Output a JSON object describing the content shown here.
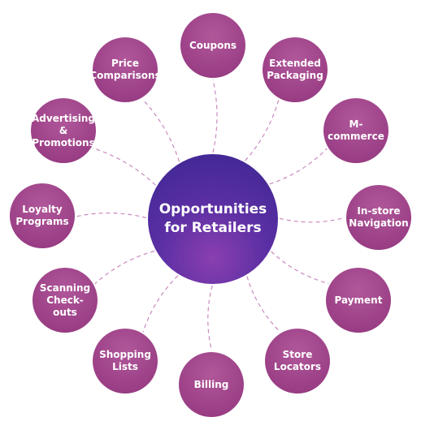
{
  "hub": {
    "label": "Opportunities\nfor Retailers"
  },
  "colors": {
    "leaf": "#9b3f86",
    "hub": "#3b2691",
    "connector": "#c98abf"
  },
  "nodes": [
    {
      "id": "coupons",
      "label": "Coupons"
    },
    {
      "id": "extended-packaging",
      "label": "Extended\nPackaging"
    },
    {
      "id": "m-commerce",
      "label": "M-commerce"
    },
    {
      "id": "in-store-navigation",
      "label": "In-store\nNavigation"
    },
    {
      "id": "payment",
      "label": "Payment"
    },
    {
      "id": "store-locators",
      "label": "Store\nLocators"
    },
    {
      "id": "billing",
      "label": "Billing"
    },
    {
      "id": "shopping-lists",
      "label": "Shopping\nLists"
    },
    {
      "id": "scanning-check-outs",
      "label": "Scanning\nCheck-outs"
    },
    {
      "id": "loyalty-programs",
      "label": "Loyalty\nPrograms"
    },
    {
      "id": "advertising-promotions",
      "label": "Advertising\n&\nPromotions"
    },
    {
      "id": "price-comparisons",
      "label": "Price\nComparisons"
    }
  ]
}
